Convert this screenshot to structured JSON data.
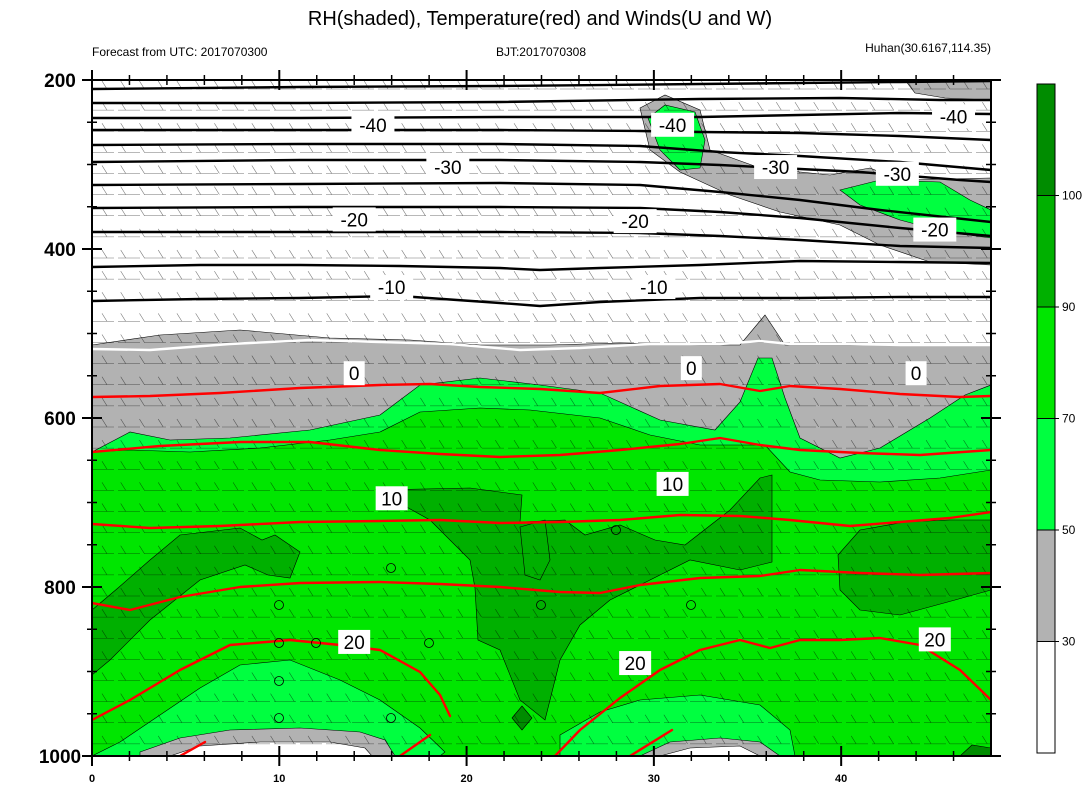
{
  "chart_data": {
    "type": "contour",
    "title": "RH(shaded), Temperature(red) and Winds(U and W)",
    "left_string": "Forecast from UTC: 2017070300",
    "center_string": "BJT:2017070308",
    "right_string": "Huhan(30.6167,114.35)",
    "x_ticks": [
      "0",
      "10",
      "20",
      "30",
      "40"
    ],
    "x_tick_values": [
      0,
      10,
      20,
      30,
      40
    ],
    "xlim": [
      0,
      48
    ],
    "y_ticks": [
      "200",
      "400",
      "600",
      "800",
      "1000"
    ],
    "y_tick_values": [
      200,
      400,
      600,
      800,
      1000
    ],
    "ylim": [
      200,
      1000
    ],
    "y_axis_reversed": true,
    "colorbar": {
      "labels": [
        "30",
        "50",
        "70",
        "90",
        "100"
      ],
      "colors": [
        "#ffffff",
        "#b2b2b2",
        "#00ff40",
        "#00e600",
        "#00b000",
        "#008c00"
      ]
    },
    "temperature_contours": [
      {
        "value": -40,
        "level_hPa": 255,
        "color": "#000000"
      },
      {
        "value": -30,
        "level_hPa": 305,
        "color": "#000000"
      },
      {
        "value": -20,
        "level_hPa": 365,
        "color": "#000000"
      },
      {
        "value": -10,
        "level_hPa": 445,
        "color": "#000000"
      },
      {
        "value": 0,
        "level_hPa": 560,
        "color": "#ffffff"
      },
      {
        "value": 10,
        "level_hPa": 685,
        "color": "#ff0000"
      },
      {
        "value": 20,
        "level_hPa": 860,
        "color": "#ff0000"
      }
    ],
    "contour_labels": [
      {
        "text": "-40",
        "x": 15,
        "p": 253
      },
      {
        "text": "-40",
        "x": 31,
        "p": 253
      },
      {
        "text": "-40",
        "x": 46,
        "p": 243
      },
      {
        "text": "-30",
        "x": 19,
        "p": 303
      },
      {
        "text": "-30",
        "x": 36.5,
        "p": 303
      },
      {
        "text": "-30",
        "x": 43,
        "p": 311
      },
      {
        "text": "-20",
        "x": 14,
        "p": 365
      },
      {
        "text": "-20",
        "x": 29,
        "p": 367
      },
      {
        "text": "-20",
        "x": 45,
        "p": 377
      },
      {
        "text": "-10",
        "x": 16,
        "p": 445
      },
      {
        "text": "-10",
        "x": 30,
        "p": 445
      },
      {
        "text": "0",
        "x": 14,
        "p": 547
      },
      {
        "text": "0",
        "x": 32,
        "p": 541
      },
      {
        "text": "0",
        "x": 44,
        "p": 547
      },
      {
        "text": "10",
        "x": 16,
        "p": 695
      },
      {
        "text": "10",
        "x": 31,
        "p": 678
      },
      {
        "text": "20",
        "x": 14,
        "p": 865
      },
      {
        "text": "20",
        "x": 29,
        "p": 890
      },
      {
        "text": "20",
        "x": 45,
        "p": 862
      }
    ]
  }
}
